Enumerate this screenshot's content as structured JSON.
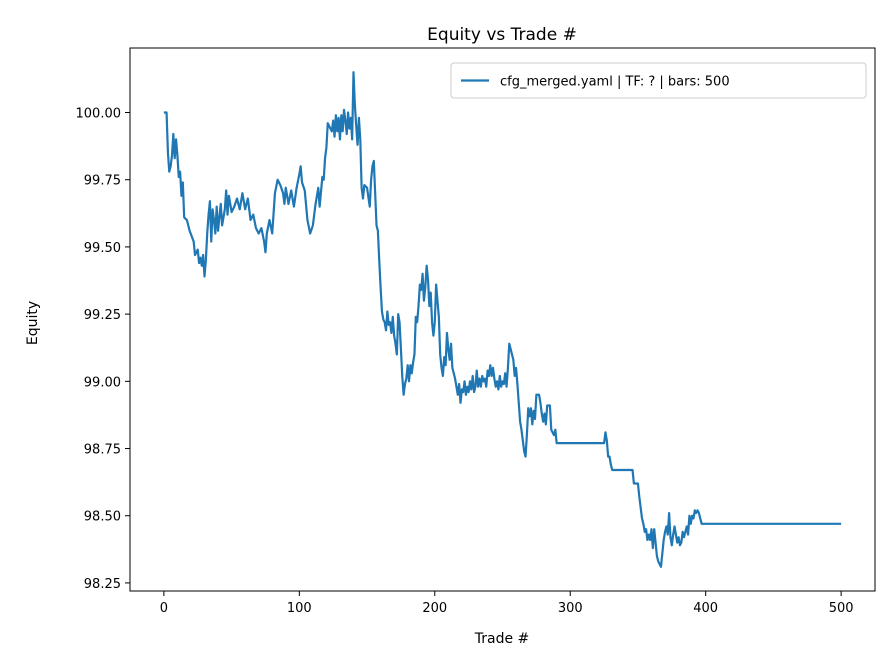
{
  "chart_data": {
    "type": "line",
    "title": "Equity vs Trade #",
    "xlabel": "Trade #",
    "ylabel": "Equity",
    "xlim": [
      -25,
      525
    ],
    "ylim": [
      98.22,
      100.24
    ],
    "xticks": [
      0,
      100,
      200,
      300,
      400,
      500
    ],
    "yticks": [
      98.25,
      98.5,
      98.75,
      99.0,
      99.25,
      99.5,
      99.75,
      100.0
    ],
    "ytick_labels": [
      "98.25",
      "98.50",
      "98.75",
      "99.00",
      "99.25",
      "99.50",
      "99.75",
      "100.00"
    ],
    "grid": false,
    "legend_position": "top-right",
    "colors": {
      "series": "#1f77b4"
    },
    "series": [
      {
        "name": "cfg_merged.yaml | TF: ? | bars: 500",
        "points": [
          [
            0,
            100.0
          ],
          [
            2,
            100.0
          ],
          [
            3,
            99.85
          ],
          [
            4,
            99.78
          ],
          [
            5,
            99.8
          ],
          [
            6,
            99.84
          ],
          [
            7,
            99.92
          ],
          [
            8,
            99.83
          ],
          [
            9,
            99.9
          ],
          [
            10,
            99.84
          ],
          [
            11,
            99.76
          ],
          [
            12,
            99.78
          ],
          [
            13,
            99.69
          ],
          [
            14,
            99.74
          ],
          [
            15,
            99.61
          ],
          [
            17,
            99.6
          ],
          [
            19,
            99.56
          ],
          [
            22,
            99.52
          ],
          [
            23,
            99.47
          ],
          [
            25,
            99.49
          ],
          [
            26,
            99.44
          ],
          [
            27,
            99.46
          ],
          [
            28,
            99.43
          ],
          [
            29,
            99.47
          ],
          [
            30,
            99.39
          ],
          [
            31,
            99.45
          ],
          [
            32,
            99.55
          ],
          [
            33,
            99.62
          ],
          [
            34,
            99.67
          ],
          [
            35,
            99.52
          ],
          [
            36,
            99.64
          ],
          [
            37,
            99.6
          ],
          [
            38,
            99.55
          ],
          [
            39,
            99.65
          ],
          [
            40,
            99.56
          ],
          [
            42,
            99.66
          ],
          [
            43,
            99.58
          ],
          [
            45,
            99.64
          ],
          [
            46,
            99.71
          ],
          [
            47,
            99.62
          ],
          [
            48,
            99.69
          ],
          [
            50,
            99.63
          ],
          [
            52,
            99.65
          ],
          [
            54,
            99.68
          ],
          [
            56,
            99.64
          ],
          [
            58,
            99.7
          ],
          [
            60,
            99.64
          ],
          [
            62,
            99.68
          ],
          [
            64,
            99.6
          ],
          [
            66,
            99.62
          ],
          [
            68,
            99.57
          ],
          [
            70,
            99.55
          ],
          [
            72,
            99.57
          ],
          [
            74,
            99.52
          ],
          [
            75,
            99.48
          ],
          [
            76,
            99.55
          ],
          [
            78,
            99.6
          ],
          [
            80,
            99.55
          ],
          [
            82,
            99.7
          ],
          [
            84,
            99.75
          ],
          [
            86,
            99.73
          ],
          [
            88,
            99.7
          ],
          [
            89,
            99.66
          ],
          [
            90,
            99.72
          ],
          [
            92,
            99.66
          ],
          [
            94,
            99.71
          ],
          [
            96,
            99.65
          ],
          [
            98,
            99.72
          ],
          [
            100,
            99.77
          ],
          [
            101,
            99.8
          ],
          [
            102,
            99.74
          ],
          [
            104,
            99.71
          ],
          [
            106,
            99.6
          ],
          [
            108,
            99.55
          ],
          [
            110,
            99.58
          ],
          [
            112,
            99.66
          ],
          [
            114,
            99.72
          ],
          [
            115,
            99.65
          ],
          [
            117,
            99.76
          ],
          [
            118,
            99.75
          ],
          [
            119,
            99.83
          ],
          [
            120,
            99.87
          ],
          [
            121,
            99.96
          ],
          [
            122,
            99.95
          ],
          [
            124,
            99.93
          ],
          [
            125,
            99.97
          ],
          [
            126,
            99.91
          ],
          [
            127,
            99.99
          ],
          [
            128,
            99.93
          ],
          [
            129,
            99.98
          ],
          [
            130,
            99.9
          ],
          [
            131,
            99.99
          ],
          [
            132,
            99.93
          ],
          [
            133,
            100.01
          ],
          [
            134,
            99.97
          ],
          [
            135,
            99.92
          ],
          [
            136,
            100.0
          ],
          [
            137,
            99.94
          ],
          [
            138,
            99.98
          ],
          [
            139,
            99.9
          ],
          [
            140,
            100.15
          ],
          [
            141,
            100.03
          ],
          [
            142,
            99.95
          ],
          [
            143,
            99.88
          ],
          [
            144,
            99.98
          ],
          [
            145,
            99.9
          ],
          [
            146,
            99.72
          ],
          [
            147,
            99.68
          ],
          [
            148,
            99.73
          ],
          [
            150,
            99.72
          ],
          [
            152,
            99.65
          ],
          [
            153,
            99.75
          ],
          [
            154,
            99.8
          ],
          [
            155,
            99.82
          ],
          [
            156,
            99.7
          ],
          [
            157,
            99.58
          ],
          [
            158,
            99.56
          ],
          [
            159,
            99.45
          ],
          [
            160,
            99.35
          ],
          [
            161,
            99.26
          ],
          [
            162,
            99.23
          ],
          [
            163,
            99.22
          ],
          [
            164,
            99.19
          ],
          [
            165,
            99.26
          ],
          [
            166,
            99.21
          ],
          [
            167,
            99.22
          ],
          [
            168,
            99.18
          ],
          [
            169,
            99.24
          ],
          [
            170,
            99.17
          ],
          [
            171,
            99.14
          ],
          [
            172,
            99.1
          ],
          [
            173,
            99.25
          ],
          [
            174,
            99.22
          ],
          [
            175,
            99.12
          ],
          [
            176,
            99.02
          ],
          [
            177,
            98.95
          ],
          [
            178,
            98.99
          ],
          [
            179,
            99.01
          ],
          [
            180,
            99.06
          ],
          [
            181,
            99.0
          ],
          [
            182,
            99.06
          ],
          [
            183,
            99.03
          ],
          [
            184,
            99.07
          ],
          [
            185,
            99.1
          ],
          [
            186,
            99.24
          ],
          [
            187,
            99.22
          ],
          [
            188,
            99.28
          ],
          [
            189,
            99.36
          ],
          [
            190,
            99.34
          ],
          [
            191,
            99.4
          ],
          [
            192,
            99.3
          ],
          [
            193,
            99.35
          ],
          [
            194,
            99.43
          ],
          [
            195,
            99.38
          ],
          [
            196,
            99.28
          ],
          [
            197,
            99.33
          ],
          [
            198,
            99.22
          ],
          [
            199,
            99.17
          ],
          [
            200,
            99.22
          ],
          [
            201,
            99.36
          ],
          [
            202,
            99.3
          ],
          [
            203,
            99.24
          ],
          [
            204,
            99.1
          ],
          [
            205,
            99.05
          ],
          [
            206,
            99.02
          ],
          [
            207,
            99.09
          ],
          [
            208,
            99.06
          ],
          [
            209,
            99.18
          ],
          [
            210,
            99.12
          ],
          [
            211,
            99.08
          ],
          [
            212,
            99.14
          ],
          [
            213,
            99.05
          ],
          [
            214,
            99.03
          ],
          [
            215,
            99.01
          ],
          [
            216,
            98.98
          ],
          [
            217,
            98.95
          ],
          [
            218,
            98.99
          ],
          [
            219,
            98.92
          ],
          [
            220,
            98.97
          ],
          [
            221,
            98.96
          ],
          [
            222,
            99.0
          ],
          [
            223,
            98.95
          ],
          [
            224,
            98.98
          ],
          [
            225,
            98.96
          ],
          [
            226,
            99.0
          ],
          [
            227,
            98.97
          ],
          [
            228,
            99.02
          ],
          [
            229,
            98.96
          ],
          [
            230,
            98.98
          ],
          [
            231,
            99.04
          ],
          [
            232,
            98.98
          ],
          [
            233,
            99.01
          ],
          [
            234,
            98.98
          ],
          [
            235,
            99.02
          ],
          [
            236,
            99.0
          ],
          [
            237,
            99.01
          ],
          [
            238,
            98.98
          ],
          [
            239,
            99.04
          ],
          [
            240,
            99.02
          ],
          [
            241,
            99.06
          ],
          [
            242,
            99.02
          ],
          [
            243,
            99.05
          ],
          [
            244,
            99.01
          ],
          [
            245,
            98.98
          ],
          [
            246,
            99.0
          ],
          [
            247,
            98.97
          ],
          [
            248,
            99.02
          ],
          [
            249,
            98.98
          ],
          [
            250,
            99.0
          ],
          [
            251,
            98.99
          ],
          [
            252,
            99.03
          ],
          [
            253,
            98.98
          ],
          [
            254,
            99.05
          ],
          [
            255,
            99.14
          ],
          [
            256,
            99.12
          ],
          [
            257,
            99.1
          ],
          [
            258,
            99.08
          ],
          [
            259,
            99.02
          ],
          [
            260,
            99.05
          ],
          [
            261,
            98.99
          ],
          [
            262,
            98.92
          ],
          [
            263,
            98.85
          ],
          [
            264,
            98.82
          ],
          [
            265,
            98.78
          ],
          [
            266,
            98.74
          ],
          [
            267,
            98.72
          ],
          [
            268,
            98.8
          ],
          [
            269,
            98.9
          ],
          [
            270,
            98.87
          ],
          [
            271,
            98.9
          ],
          [
            272,
            98.84
          ],
          [
            273,
            98.89
          ],
          [
            274,
            98.86
          ],
          [
            275,
            98.95
          ],
          [
            277,
            98.95
          ],
          [
            278,
            98.92
          ],
          [
            279,
            98.88
          ],
          [
            280,
            98.85
          ],
          [
            281,
            98.88
          ],
          [
            282,
            98.84
          ],
          [
            283,
            98.91
          ],
          [
            285,
            98.91
          ],
          [
            286,
            98.82
          ],
          [
            288,
            98.8
          ],
          [
            289,
            98.82
          ],
          [
            290,
            98.77
          ],
          [
            300,
            98.77
          ],
          [
            310,
            98.77
          ],
          [
            325,
            98.77
          ],
          [
            326,
            98.81
          ],
          [
            327,
            98.78
          ],
          [
            328,
            98.72
          ],
          [
            329,
            98.72
          ],
          [
            330,
            98.69
          ],
          [
            331,
            98.67
          ],
          [
            340,
            98.67
          ],
          [
            346,
            98.67
          ],
          [
            347,
            98.62
          ],
          [
            350,
            98.62
          ],
          [
            351,
            98.57
          ],
          [
            352,
            98.53
          ],
          [
            353,
            98.49
          ],
          [
            354,
            98.47
          ],
          [
            355,
            98.44
          ],
          [
            356,
            98.45
          ],
          [
            357,
            98.41
          ],
          [
            358,
            98.43
          ],
          [
            359,
            98.41
          ],
          [
            360,
            98.45
          ],
          [
            361,
            98.38
          ],
          [
            362,
            98.45
          ],
          [
            363,
            98.4
          ],
          [
            364,
            98.35
          ],
          [
            365,
            98.33
          ],
          [
            366,
            98.32
          ],
          [
            367,
            98.31
          ],
          [
            368,
            98.36
          ],
          [
            369,
            98.41
          ],
          [
            370,
            98.44
          ],
          [
            371,
            98.46
          ],
          [
            372,
            98.43
          ],
          [
            373,
            98.51
          ],
          [
            374,
            98.42
          ],
          [
            375,
            98.39
          ],
          [
            376,
            98.43
          ],
          [
            377,
            98.46
          ],
          [
            378,
            98.43
          ],
          [
            379,
            98.4
          ],
          [
            380,
            98.42
          ],
          [
            381,
            98.39
          ],
          [
            382,
            98.4
          ],
          [
            383,
            98.44
          ],
          [
            384,
            98.42
          ],
          [
            385,
            98.44
          ],
          [
            386,
            98.46
          ],
          [
            387,
            98.43
          ],
          [
            388,
            98.5
          ],
          [
            389,
            98.47
          ],
          [
            390,
            98.5
          ],
          [
            391,
            98.49
          ],
          [
            392,
            98.52
          ],
          [
            393,
            98.51
          ],
          [
            394,
            98.52
          ],
          [
            395,
            98.51
          ],
          [
            396,
            98.49
          ],
          [
            397,
            98.47
          ],
          [
            400,
            98.47
          ],
          [
            450,
            98.47
          ],
          [
            500,
            98.47
          ]
        ]
      }
    ]
  }
}
